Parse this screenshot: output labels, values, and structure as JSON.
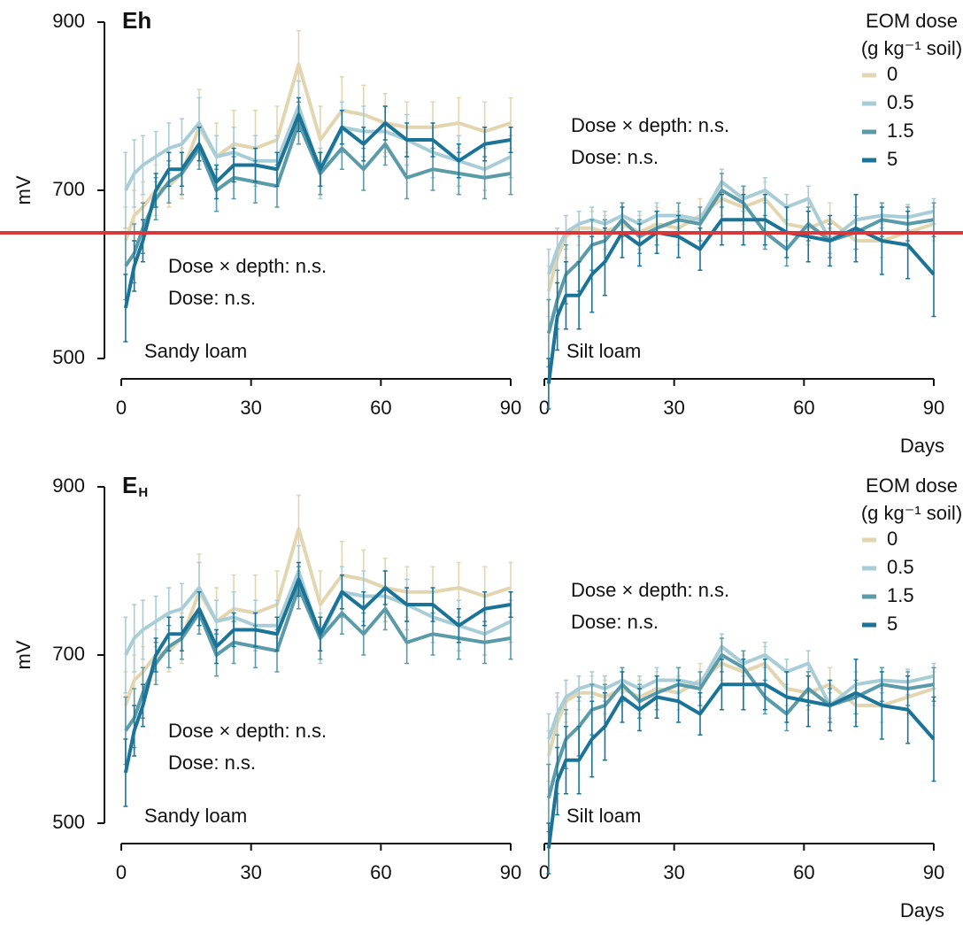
{
  "chart_data": [
    {
      "type": "line",
      "title": "Eh",
      "ylabel": "mV",
      "panel_label": "Sandy loam",
      "annotations": [
        "Dose × depth: n.s.",
        "Dose: n.s."
      ],
      "x": [
        1,
        3,
        5,
        8,
        11,
        14,
        18,
        22,
        26,
        31,
        36,
        41,
        46,
        51,
        56,
        61,
        66,
        72,
        78,
        84,
        90
      ],
      "xlim": [
        0,
        90
      ],
      "xticks": [
        0,
        30,
        60,
        90
      ],
      "ylim": [
        500,
        900
      ],
      "yticks": [
        500,
        700,
        900
      ],
      "series": [
        {
          "color": "#e2d5b0",
          "values": [
            640,
            670,
            680,
            700,
            705,
            720,
            775,
            740,
            755,
            750,
            760,
            850,
            760,
            795,
            790,
            780,
            775,
            775,
            780,
            770,
            780
          ],
          "errors": [
            40,
            30,
            30,
            30,
            25,
            30,
            45,
            40,
            40,
            45,
            40,
            40,
            40,
            40,
            35,
            35,
            30,
            30,
            30,
            35,
            30
          ]
        },
        {
          "color": "#a9cdd7",
          "values": [
            700,
            720,
            730,
            740,
            750,
            755,
            780,
            740,
            745,
            735,
            735,
            800,
            720,
            775,
            770,
            770,
            760,
            745,
            735,
            725,
            740
          ],
          "errors": [
            45,
            40,
            35,
            30,
            30,
            30,
            30,
            25,
            30,
            30,
            30,
            30,
            30,
            30,
            30,
            30,
            30,
            30,
            30,
            25,
            25
          ]
        },
        {
          "color": "#5b9ba9",
          "values": [
            610,
            625,
            655,
            690,
            710,
            720,
            750,
            700,
            715,
            710,
            705,
            780,
            720,
            750,
            725,
            755,
            715,
            725,
            720,
            715,
            720
          ],
          "errors": [
            40,
            35,
            30,
            25,
            25,
            25,
            25,
            25,
            25,
            25,
            25,
            25,
            25,
            25,
            25,
            25,
            25,
            25,
            25,
            25,
            25
          ]
        },
        {
          "color": "#1b7497",
          "values": [
            560,
            610,
            640,
            700,
            725,
            725,
            755,
            710,
            730,
            730,
            725,
            790,
            725,
            775,
            755,
            780,
            760,
            760,
            735,
            755,
            760
          ],
          "errors": [
            40,
            30,
            25,
            20,
            20,
            20,
            20,
            20,
            20,
            20,
            20,
            20,
            20,
            20,
            20,
            20,
            20,
            20,
            20,
            20,
            15
          ]
        }
      ]
    },
    {
      "type": "line",
      "xlabel": "Days",
      "panel_label": "Silt loam",
      "annotations": [
        "Dose × depth: n.s.",
        "Dose: n.s."
      ],
      "legend_title": [
        "EOM dose",
        "(g kg⁻¹ soil)"
      ],
      "x": [
        1,
        3,
        5,
        8,
        11,
        14,
        18,
        22,
        26,
        31,
        36,
        41,
        46,
        51,
        56,
        61,
        66,
        72,
        78,
        84,
        90
      ],
      "xlim": [
        0,
        90
      ],
      "xticks": [
        0,
        30,
        60,
        90
      ],
      "ylim": [
        500,
        900
      ],
      "series": [
        {
          "name": "0",
          "color": "#e2d5b0",
          "values": [
            580,
            620,
            645,
            655,
            655,
            650,
            660,
            650,
            660,
            655,
            670,
            690,
            680,
            690,
            660,
            655,
            665,
            640,
            640,
            650,
            660
          ],
          "errors": [
            30,
            30,
            25,
            20,
            20,
            20,
            20,
            20,
            20,
            20,
            20,
            20,
            20,
            20,
            20,
            20,
            20,
            20,
            20,
            20,
            20
          ]
        },
        {
          "name": "0.5",
          "color": "#a9cdd7",
          "values": [
            600,
            630,
            650,
            660,
            665,
            660,
            670,
            660,
            670,
            670,
            665,
            710,
            690,
            700,
            680,
            690,
            640,
            665,
            670,
            668,
            675
          ],
          "errors": [
            30,
            25,
            20,
            15,
            15,
            15,
            15,
            15,
            15,
            15,
            15,
            15,
            15,
            15,
            15,
            15,
            15,
            15,
            15,
            15,
            15
          ]
        },
        {
          "name": "1.5",
          "color": "#5b9ba9",
          "values": [
            530,
            570,
            600,
            615,
            635,
            640,
            665,
            645,
            655,
            665,
            660,
            700,
            685,
            650,
            630,
            660,
            640,
            650,
            665,
            660,
            665
          ],
          "errors": [
            40,
            35,
            35,
            35,
            30,
            25,
            20,
            20,
            20,
            20,
            20,
            20,
            20,
            20,
            20,
            20,
            20,
            20,
            20,
            20,
            20
          ]
        },
        {
          "name": "5",
          "color": "#1b7497",
          "values": [
            470,
            550,
            575,
            575,
            600,
            615,
            650,
            635,
            650,
            645,
            630,
            665,
            665,
            665,
            650,
            645,
            640,
            655,
            640,
            635,
            600
          ],
          "errors": [
            30,
            40,
            40,
            40,
            45,
            40,
            30,
            25,
            25,
            25,
            25,
            30,
            30,
            30,
            30,
            30,
            30,
            40,
            40,
            40,
            50
          ]
        }
      ]
    },
    {
      "type": "line",
      "title": "E",
      "title_subscript": "H",
      "ylabel": "mV",
      "panel_label": "Sandy loam",
      "annotations": [
        "Dose × depth: n.s.",
        "Dose: n.s."
      ],
      "x": [
        1,
        3,
        5,
        8,
        11,
        14,
        18,
        22,
        26,
        31,
        36,
        41,
        46,
        51,
        56,
        61,
        66,
        72,
        78,
        84,
        90
      ],
      "xlim": [
        0,
        90
      ],
      "xticks": [
        0,
        30,
        60,
        90
      ],
      "ylim": [
        500,
        900
      ],
      "yticks": [
        500,
        700,
        900
      ],
      "series": [
        {
          "color": "#e2d5b0",
          "values": [
            640,
            670,
            680,
            700,
            705,
            720,
            775,
            740,
            755,
            750,
            760,
            850,
            760,
            795,
            790,
            780,
            775,
            775,
            780,
            770,
            780
          ],
          "errors": [
            40,
            30,
            30,
            30,
            25,
            30,
            45,
            40,
            40,
            45,
            40,
            40,
            40,
            40,
            35,
            35,
            30,
            30,
            30,
            35,
            30
          ]
        },
        {
          "color": "#a9cdd7",
          "values": [
            700,
            720,
            730,
            740,
            750,
            755,
            780,
            740,
            745,
            735,
            735,
            800,
            720,
            775,
            770,
            770,
            760,
            745,
            735,
            725,
            740
          ],
          "errors": [
            45,
            40,
            35,
            30,
            30,
            30,
            30,
            25,
            30,
            30,
            30,
            30,
            30,
            30,
            30,
            30,
            30,
            30,
            30,
            25,
            25
          ]
        },
        {
          "color": "#5b9ba9",
          "values": [
            610,
            625,
            655,
            690,
            710,
            720,
            750,
            700,
            715,
            710,
            705,
            780,
            720,
            750,
            725,
            755,
            715,
            725,
            720,
            715,
            720
          ],
          "errors": [
            40,
            35,
            30,
            25,
            25,
            25,
            25,
            25,
            25,
            25,
            25,
            25,
            25,
            25,
            25,
            25,
            25,
            25,
            25,
            25,
            25
          ]
        },
        {
          "color": "#1b7497",
          "values": [
            560,
            610,
            640,
            700,
            725,
            725,
            755,
            710,
            730,
            730,
            725,
            790,
            725,
            775,
            755,
            780,
            760,
            760,
            735,
            755,
            760
          ],
          "errors": [
            40,
            30,
            25,
            20,
            20,
            20,
            20,
            20,
            20,
            20,
            20,
            20,
            20,
            20,
            20,
            20,
            20,
            20,
            20,
            20,
            15
          ]
        }
      ]
    },
    {
      "type": "line",
      "xlabel": "Days",
      "panel_label": "Silt loam",
      "annotations": [
        "Dose × depth: n.s.",
        "Dose: n.s."
      ],
      "legend_title": [
        "EOM dose",
        "(g kg⁻¹ soil)"
      ],
      "x": [
        1,
        3,
        5,
        8,
        11,
        14,
        18,
        22,
        26,
        31,
        36,
        41,
        46,
        51,
        56,
        61,
        66,
        72,
        78,
        84,
        90
      ],
      "xlim": [
        0,
        90
      ],
      "xticks": [
        0,
        30,
        60,
        90
      ],
      "ylim": [
        500,
        900
      ],
      "series": [
        {
          "name": "0",
          "color": "#e2d5b0",
          "values": [
            580,
            620,
            645,
            655,
            655,
            650,
            660,
            650,
            660,
            655,
            670,
            690,
            680,
            690,
            660,
            655,
            665,
            640,
            640,
            650,
            660
          ],
          "errors": [
            30,
            30,
            25,
            20,
            20,
            20,
            20,
            20,
            20,
            20,
            20,
            20,
            20,
            20,
            20,
            20,
            20,
            20,
            20,
            20,
            20
          ]
        },
        {
          "name": "0.5",
          "color": "#a9cdd7",
          "values": [
            600,
            630,
            650,
            660,
            665,
            660,
            670,
            660,
            670,
            670,
            665,
            710,
            690,
            700,
            680,
            690,
            640,
            665,
            670,
            668,
            675
          ],
          "errors": [
            30,
            25,
            20,
            15,
            15,
            15,
            15,
            15,
            15,
            15,
            15,
            15,
            15,
            15,
            15,
            15,
            15,
            15,
            15,
            15,
            15
          ]
        },
        {
          "name": "1.5",
          "color": "#5b9ba9",
          "values": [
            530,
            570,
            600,
            615,
            635,
            640,
            665,
            645,
            655,
            665,
            660,
            700,
            685,
            650,
            630,
            660,
            640,
            650,
            665,
            660,
            665
          ],
          "errors": [
            40,
            35,
            35,
            35,
            30,
            25,
            20,
            20,
            20,
            20,
            20,
            20,
            20,
            20,
            20,
            20,
            20,
            20,
            20,
            20,
            20
          ]
        },
        {
          "name": "5",
          "color": "#1b7497",
          "values": [
            470,
            550,
            575,
            575,
            600,
            615,
            650,
            635,
            650,
            645,
            630,
            665,
            665,
            665,
            650,
            645,
            640,
            655,
            640,
            635,
            600
          ],
          "errors": [
            30,
            40,
            40,
            40,
            45,
            40,
            30,
            25,
            25,
            25,
            25,
            30,
            30,
            30,
            30,
            30,
            30,
            40,
            40,
            40,
            50
          ]
        }
      ]
    }
  ]
}
